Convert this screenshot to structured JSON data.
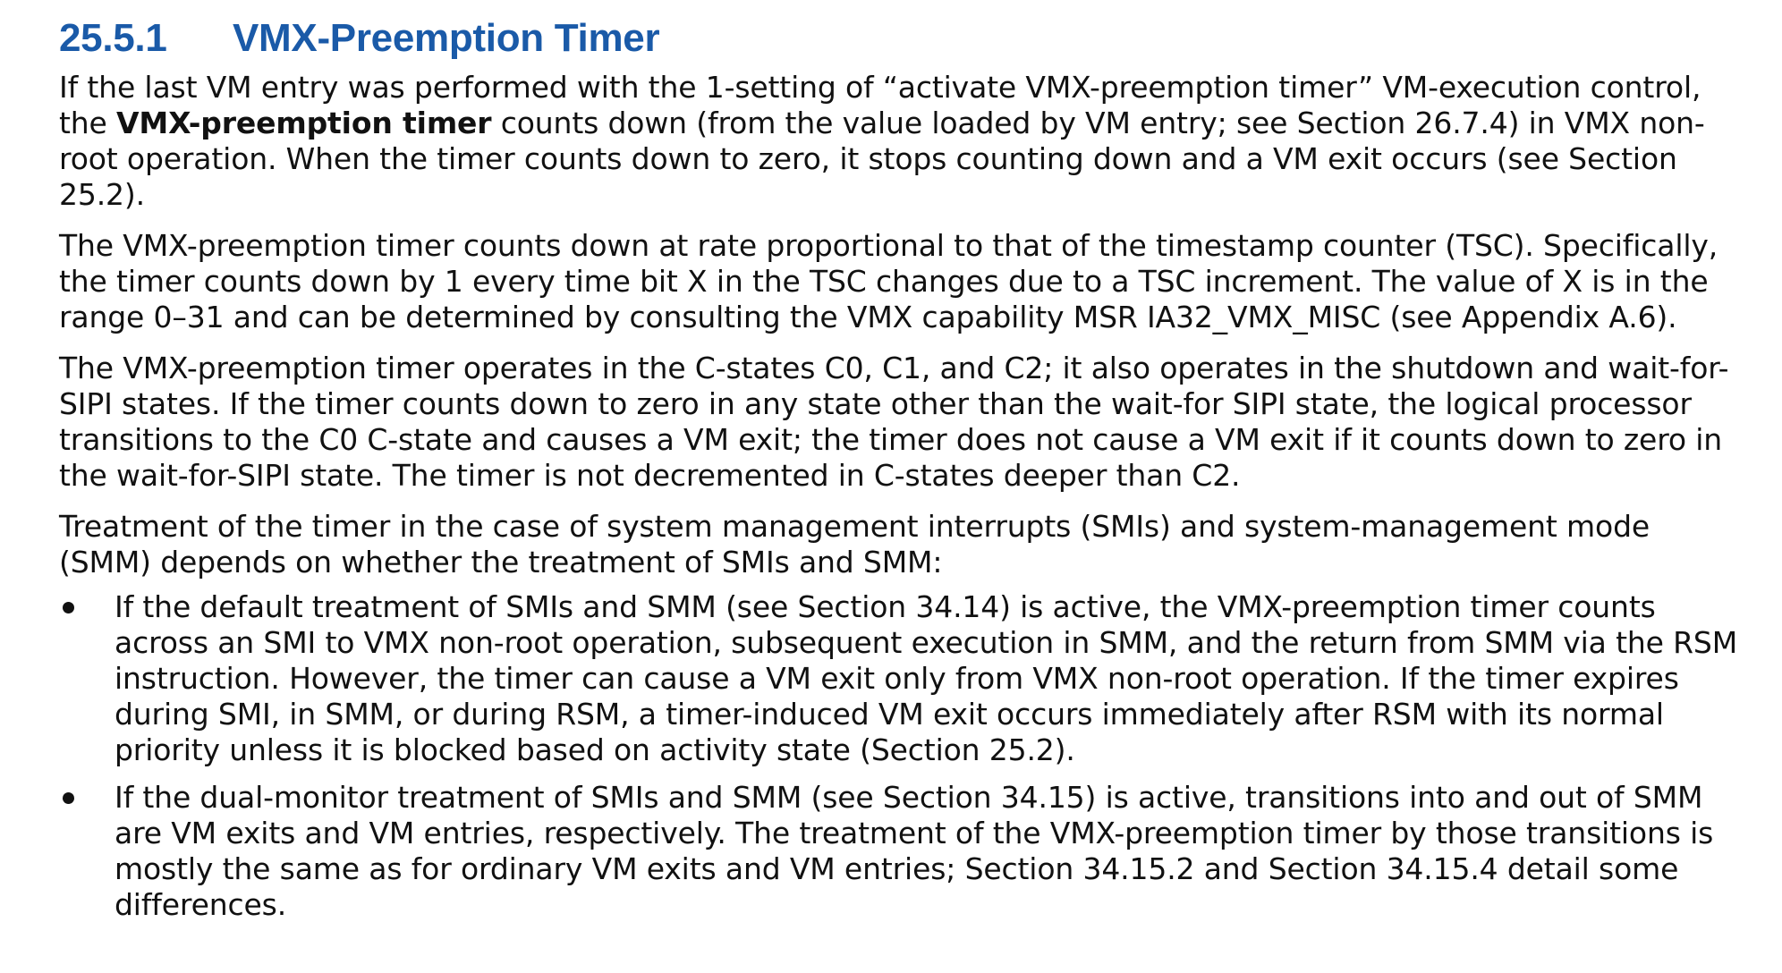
{
  "section": {
    "number": "25.5.1",
    "title": "VMX-Preemption Timer"
  },
  "paragraphs": {
    "p1": {
      "before": "If the last VM entry was performed with the 1-setting of “activate VMX-preemption timer” VM-execution control, the ",
      "bold": "VMX-preemption timer",
      "after": " counts down (from the value loaded by VM entry; see Section 26.7.4) in VMX non-root operation. When the timer counts down to zero, it stops counting down and a VM exit occurs (see Section 25.2)."
    },
    "p2": "The VMX-preemption timer counts down at rate proportional to that of the timestamp counter (TSC). Specifically, the timer counts down by 1 every time bit X in the TSC changes due to a TSC increment. The value of X is in the range 0–31 and can be determined by consulting the VMX capability MSR IA32_VMX_MISC (see Appendix A.6).",
    "p3": "The VMX-preemption timer operates in the C-states C0, C1, and C2; it also operates in the shutdown and wait-for-SIPI states. If the timer counts down to zero in any state other than the wait-for SIPI state, the logical processor transitions to the C0 C-state and causes a VM exit; the timer does not cause a VM exit if it counts down to zero in the wait-for-SIPI state. The timer is not decremented in C-states deeper than C2.",
    "p4": "Treatment of the timer in the case of system management interrupts (SMIs) and system-management mode (SMM) depends on whether the treatment of SMIs and SMM:"
  },
  "bullets": [
    "If the default treatment of SMIs and SMM (see Section 34.14) is active, the VMX-preemption timer counts across an SMI to VMX non-root operation, subsequent execution in SMM, and the return from SMM via the RSM instruction. However, the timer can cause a VM exit only from VMX non-root operation. If the timer expires during SMI, in SMM, or during RSM, a timer-induced VM exit occurs immediately after RSM with its normal priority unless it is blocked based on activity state (Section 25.2).",
    "If the dual-monitor treatment of SMIs and SMM (see Section 34.15) is active, transitions into and out of SMM are VM exits and VM entries, respectively. The treatment of the VMX-preemption timer by those transitions is mostly the same as for ordinary VM exits and VM entries; Section 34.15.2 and Section 34.15.4 detail some differences."
  ]
}
